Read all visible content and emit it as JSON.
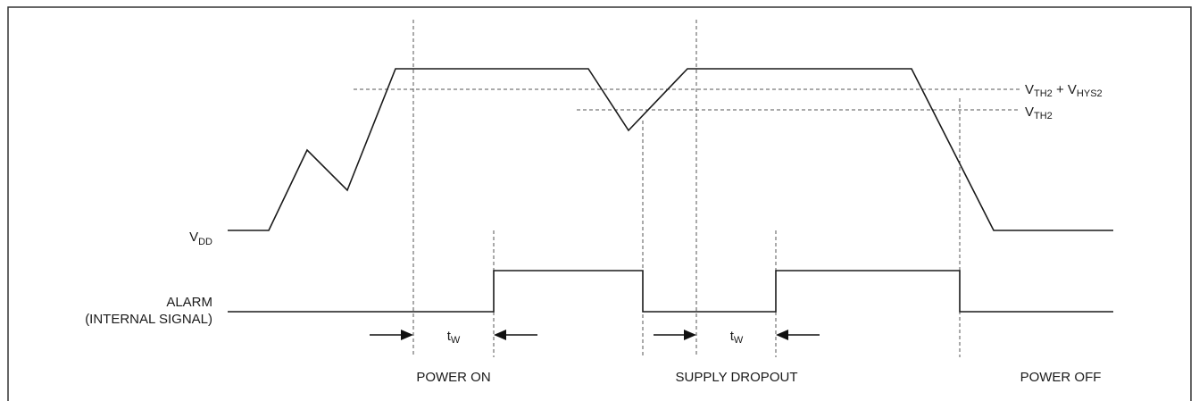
{
  "signals": {
    "vdd": {
      "main": "V",
      "sub": "DD"
    },
    "alarm": {
      "line1": "ALARM",
      "line2": "(INTERNAL SIGNAL)"
    }
  },
  "thresholds": {
    "upper": {
      "v1": "V",
      "s1": "TH2",
      "plus": " + ",
      "v2": "V",
      "s2": "HYS2"
    },
    "lower": {
      "v": "V",
      "s": "TH2"
    }
  },
  "tw": {
    "main": "t",
    "sub": "W"
  },
  "events": {
    "power_on": "POWER ON",
    "supply_dropout": "SUPPLY DROPOUT",
    "power_off": "POWER OFF"
  }
}
